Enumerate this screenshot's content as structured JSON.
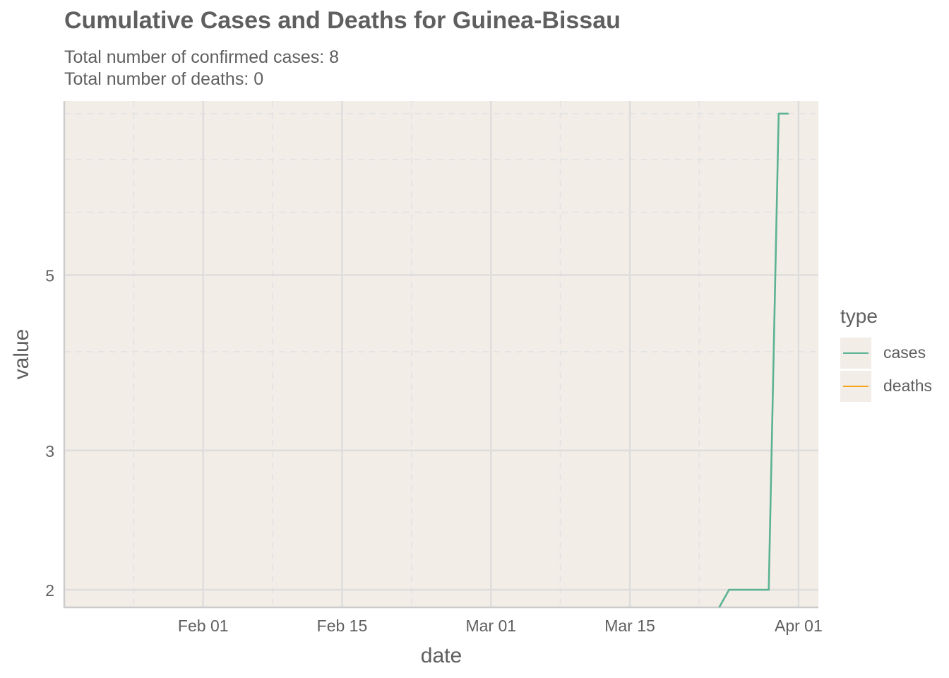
{
  "colors": {
    "panel_bg": "#f3ede7",
    "grid_major": "#dddddd",
    "grid_minor": "#e4e4e4",
    "axis_line": "#cccccc",
    "text": "#5f5f5f",
    "cases": "#5cb394",
    "deaths": "#f5a623"
  },
  "chart_data": {
    "type": "line",
    "title": "Cumulative Cases and Deaths for Guinea-Bissau",
    "subtitle_lines": [
      "Total number of confirmed cases: 8",
      "Total number of deaths: 0"
    ],
    "xlabel": "date",
    "ylabel": "value",
    "x_ticks": [
      {
        "date": "2020-02-01",
        "label": "Feb 01"
      },
      {
        "date": "2020-02-15",
        "label": "Feb 15"
      },
      {
        "date": "2020-03-01",
        "label": "Mar 01"
      },
      {
        "date": "2020-03-15",
        "label": "Mar 15"
      },
      {
        "date": "2020-04-01",
        "label": "Apr 01"
      }
    ],
    "x_minor_ticks": [
      "2020-01-25",
      "2020-02-08",
      "2020-02-22",
      "2020-03-08",
      "2020-03-22"
    ],
    "xlim": [
      "2020-01-18",
      "2020-04-03"
    ],
    "y_scale": "log",
    "y_ticks": [
      {
        "value": 2,
        "label": "2"
      },
      {
        "value": 3,
        "label": "3"
      },
      {
        "value": 5,
        "label": "5"
      }
    ],
    "y_minor_ticks": [
      4,
      6,
      7,
      8
    ],
    "ylim": [
      1.9,
      8.3
    ],
    "grid": true,
    "legend": {
      "title": "type",
      "position": "right"
    },
    "series": [
      {
        "name": "cases",
        "color": "#5cb394",
        "points": [
          {
            "date": "2020-03-24",
            "value": 1.9
          },
          {
            "date": "2020-03-25",
            "value": 2
          },
          {
            "date": "2020-03-29",
            "value": 2
          },
          {
            "date": "2020-03-30",
            "value": 8
          },
          {
            "date": "2020-03-31",
            "value": 8
          }
        ]
      },
      {
        "name": "deaths",
        "color": "#f5a623",
        "points": []
      }
    ]
  }
}
